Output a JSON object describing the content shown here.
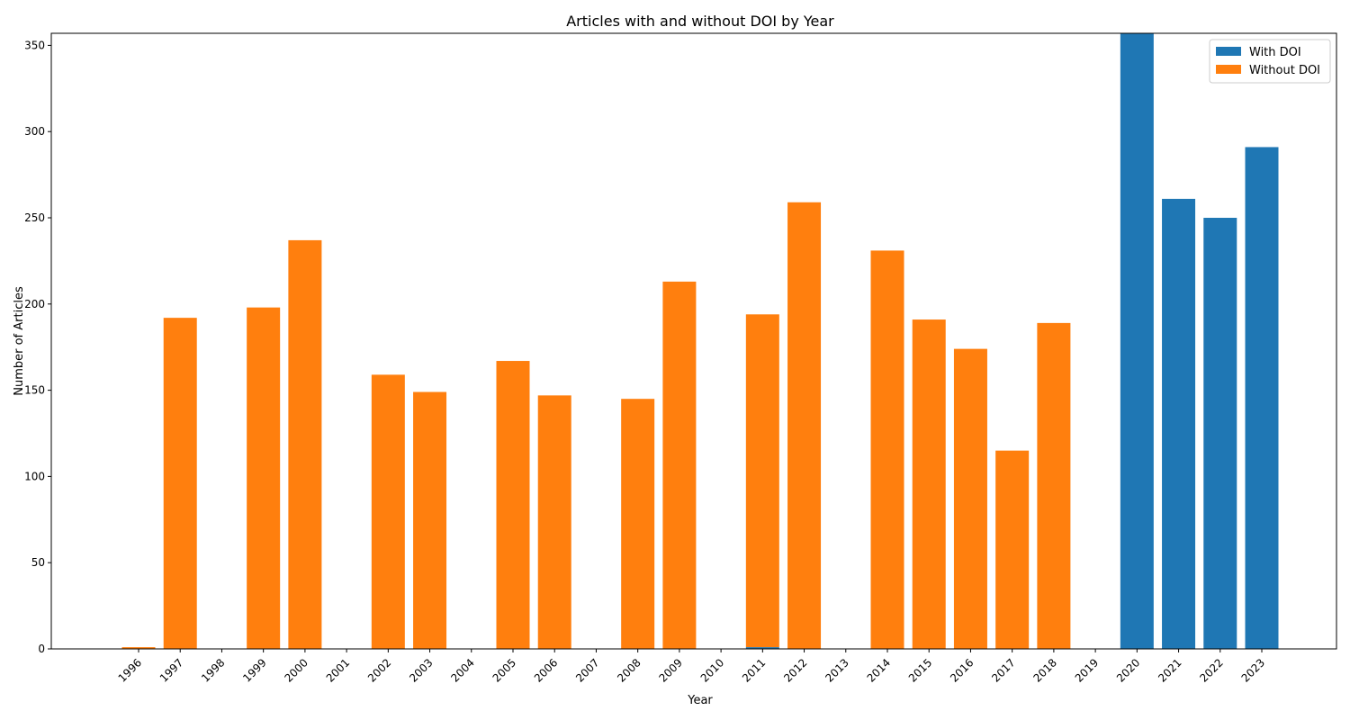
{
  "chart_data": {
    "type": "bar",
    "stacked": true,
    "title": "Articles with and without DOI by Year",
    "xlabel": "Year",
    "ylabel": "Number of Articles",
    "ylim": [
      0,
      357
    ],
    "yticks": [
      0,
      50,
      100,
      150,
      200,
      250,
      300,
      350
    ],
    "categories": [
      "1996",
      "1997",
      "1998",
      "1999",
      "2000",
      "2001",
      "2002",
      "2003",
      "2004",
      "2005",
      "2006",
      "2007",
      "2008",
      "2009",
      "2010",
      "2011",
      "2012",
      "2013",
      "2014",
      "2015",
      "2016",
      "2017",
      "2018",
      "2019",
      "2020",
      "2021",
      "2022",
      "2023"
    ],
    "series": [
      {
        "name": "With DOI",
        "color": "#1f77b4",
        "values": [
          0,
          0,
          0,
          0,
          0,
          0,
          0,
          0,
          0,
          0,
          0,
          0,
          0,
          0,
          0,
          1,
          0,
          0,
          0,
          0,
          0,
          0,
          0,
          0,
          357,
          261,
          250,
          291
        ]
      },
      {
        "name": "Without DOI",
        "color": "#ff7f0e",
        "values": [
          1,
          192,
          0,
          198,
          237,
          0,
          159,
          149,
          0,
          167,
          147,
          0,
          145,
          213,
          0,
          193,
          259,
          0,
          231,
          191,
          174,
          115,
          189,
          0,
          0,
          0,
          0,
          0
        ]
      }
    ],
    "legend_position": "top-right",
    "grid": false
  }
}
